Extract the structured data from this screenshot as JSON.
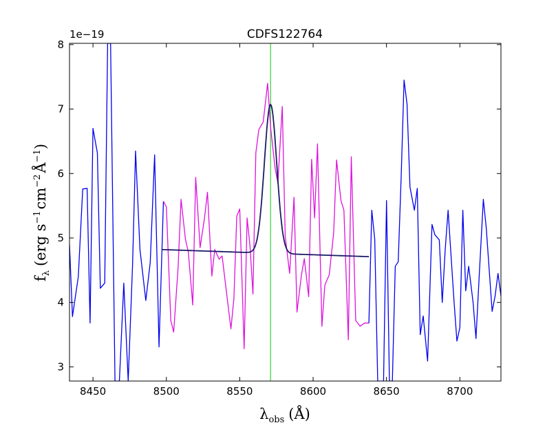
{
  "chart_data": {
    "type": "line",
    "title": "CDFS122764",
    "xlabel": "λ",
    "xlabel_sub": "obs",
    "xlabel_unit": "(Å)",
    "ylabel": "f",
    "ylabel_sub": "λ",
    "ylabel_unit_parts": [
      "(erg s",
      "−1",
      "cm",
      "−2",
      "Å",
      "−1",
      ")"
    ],
    "y_offset_text": "1e−19",
    "xlim": [
      8434,
      8728
    ],
    "ylim": [
      2.78,
      8.02
    ],
    "x_ticks": [
      8450,
      8500,
      8550,
      8600,
      8650,
      8700
    ],
    "y_ticks": [
      3,
      4,
      5,
      6,
      7,
      8
    ],
    "grid": false,
    "vertical_line": {
      "x": 8571,
      "color": "#33cc33"
    },
    "series": [
      {
        "color": "#0000ee",
        "x": [
          8434,
          8436,
          8440,
          8443,
          8446,
          8448,
          8450,
          8453,
          8455,
          8458,
          8460,
          8462,
          8465,
          8468,
          8471,
          8474,
          8477,
          8479,
          8482,
          8486,
          8489,
          8492,
          8495,
          8498
        ],
        "y": [
          4.9,
          3.78,
          4.4,
          5.76,
          5.77,
          3.68,
          6.7,
          6.32,
          4.22,
          4.3,
          8.02,
          8.02,
          2.78,
          2.78,
          4.3,
          2.78,
          4.6,
          6.35,
          4.82,
          4.03,
          4.62,
          6.29,
          3.31,
          5.57
        ]
      },
      {
        "color": "#dd11dd",
        "x": [
          8498,
          8500,
          8503,
          8505,
          8508,
          8510,
          8513,
          8515,
          8518,
          8520,
          8523,
          8526,
          8528,
          8531,
          8533,
          8536,
          8538,
          8541,
          8544,
          8546,
          8548,
          8550,
          8553,
          8555,
          8557,
          8559,
          8561,
          8563,
          8566,
          8569,
          8571,
          8574,
          8576,
          8579,
          8581,
          8584,
          8587,
          8589,
          8592,
          8594,
          8597,
          8599,
          8601,
          8603,
          8606,
          8608,
          8611,
          8614,
          8616,
          8619,
          8621,
          8624,
          8626,
          8629,
          8632,
          8635,
          8638
        ],
        "y": [
          5.57,
          5.48,
          3.72,
          3.54,
          4.54,
          5.6,
          4.98,
          4.78,
          3.96,
          5.94,
          4.85,
          5.31,
          5.71,
          4.41,
          4.82,
          4.67,
          4.72,
          4.15,
          3.59,
          4.06,
          5.34,
          5.45,
          3.28,
          5.31,
          4.88,
          4.13,
          6.32,
          6.68,
          6.8,
          7.4,
          6.72,
          6.1,
          5.85,
          7.04,
          5.02,
          4.45,
          5.63,
          3.85,
          4.42,
          4.68,
          4.09,
          6.22,
          5.31,
          6.46,
          3.63,
          4.27,
          4.43,
          5.08,
          6.21,
          5.58,
          5.43,
          3.42,
          6.26,
          3.72,
          3.63,
          3.68,
          3.68
        ]
      },
      {
        "color": "#0000ee",
        "x": [
          8638,
          8640,
          8642,
          8644,
          8646,
          8648,
          8650,
          8652,
          8654,
          8656,
          8658,
          8660,
          8662,
          8664,
          8666,
          8669,
          8671,
          8673,
          8675,
          8678,
          8681,
          8683,
          8686,
          8688,
          8690,
          8692,
          8694,
          8696,
          8698,
          8700,
          8702,
          8704,
          8706,
          8709,
          8711,
          8713,
          8716,
          8718,
          8720,
          8722,
          8724,
          8726,
          8728
        ],
        "y": [
          3.68,
          5.43,
          4.98,
          2.78,
          2.78,
          2.78,
          5.58,
          2.78,
          2.78,
          4.56,
          4.63,
          5.95,
          7.45,
          7.08,
          5.79,
          5.43,
          5.77,
          3.5,
          3.79,
          3.09,
          5.21,
          5.05,
          4.97,
          4.0,
          4.82,
          5.43,
          4.72,
          4.02,
          3.4,
          3.61,
          5.43,
          4.18,
          4.56,
          4.0,
          3.44,
          4.33,
          5.6,
          5.15,
          4.51,
          3.86,
          4.1,
          4.45,
          4.1
        ]
      },
      {
        "color": "#1a1a66",
        "model": "gaussian",
        "x_start": 8497,
        "x_end": 8638,
        "continuum_start": 4.82,
        "continuum_end": 4.71,
        "amplitude": 2.31,
        "center": 8571,
        "sigma": 4.2
      }
    ]
  }
}
